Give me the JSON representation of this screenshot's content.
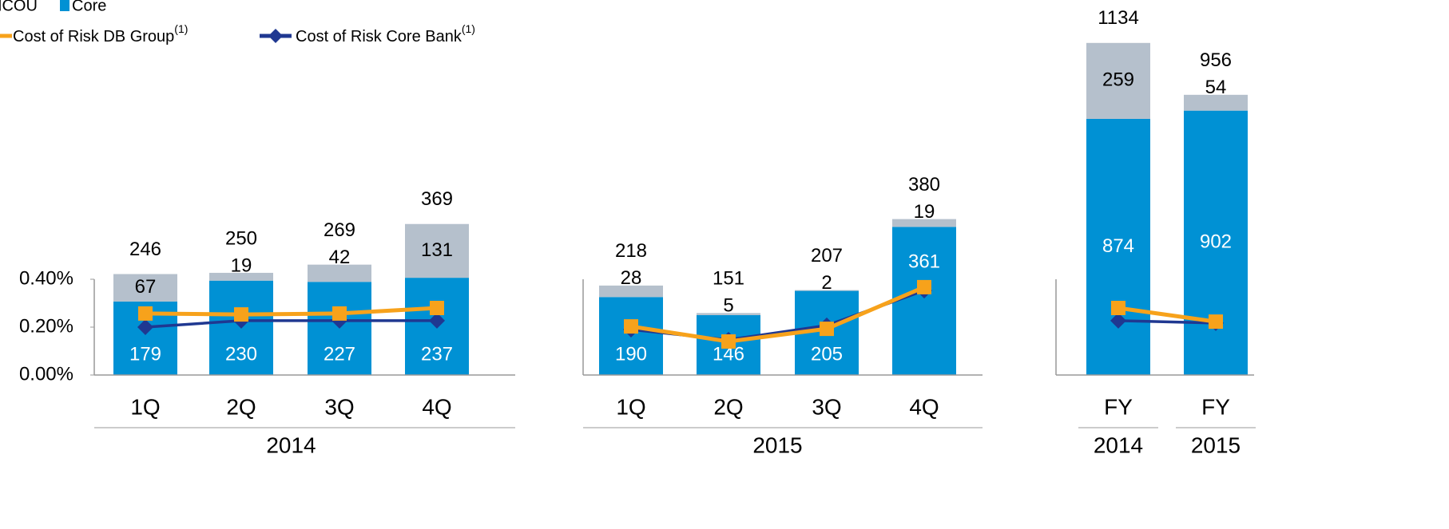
{
  "chart_data": [
    {
      "type": "stacked-bar-line",
      "group": "2014",
      "categories": [
        "1Q",
        "2Q",
        "3Q",
        "4Q"
      ],
      "series": [
        {
          "name": "Core",
          "color": "#0091d4",
          "values": [
            179,
            230,
            227,
            237
          ]
        },
        {
          "name": "NCOU",
          "color": "#b5c0cc",
          "values": [
            67,
            19,
            42,
            131
          ]
        },
        {
          "name": "Cost of Risk Core Bank",
          "note": "(1)",
          "color": "#1f3891",
          "axis": "y2",
          "marker": "diamond",
          "values": [
            0.2,
            0.227,
            0.227,
            0.227
          ]
        },
        {
          "name": "Cost of Risk DB Group",
          "note": "(1)",
          "color": "#f7a21b",
          "axis": "y2",
          "marker": "square",
          "values": [
            0.257,
            0.253,
            0.257,
            0.28
          ]
        }
      ],
      "totals": [
        246,
        250,
        269,
        369
      ],
      "ylim": [
        0,
        875
      ],
      "y2lim": [
        0,
        1.5
      ],
      "y2ticks": [
        {
          "value": 0,
          "label": "0.00%"
        },
        {
          "value": 0.2,
          "label": "0.20%"
        },
        {
          "value": 0.4,
          "label": "0.40%"
        }
      ]
    },
    {
      "type": "stacked-bar-line",
      "group": "2015",
      "categories": [
        "1Q",
        "2Q",
        "3Q",
        "4Q"
      ],
      "series": [
        {
          "color": "#0091d4",
          "values": [
            190,
            146,
            205,
            361
          ]
        },
        {
          "color": "#b5c0cc",
          "values": [
            28,
            5,
            2,
            19
          ]
        },
        {
          "color": "#1f3891",
          "axis": "y2",
          "marker": "diamond",
          "values": [
            0.19,
            0.147,
            0.207,
            0.353
          ]
        },
        {
          "color": "#f7a21b",
          "axis": "y2",
          "marker": "square",
          "values": [
            0.203,
            0.14,
            0.193,
            0.367
          ]
        }
      ],
      "totals": [
        218,
        151,
        207,
        380
      ],
      "ylim": [
        0,
        875
      ],
      "y2lim": [
        0,
        1.5
      ]
    },
    {
      "type": "stacked-bar-line",
      "groups": [
        "2014",
        "2015"
      ],
      "categories": [
        "FY",
        "FY"
      ],
      "series": [
        {
          "color": "#0091d4",
          "values": [
            874,
            902
          ]
        },
        {
          "color": "#b5c0cc",
          "values": [
            259,
            54
          ]
        },
        {
          "color": "#1f3891",
          "axis": "y2",
          "marker": "diamond",
          "values": [
            0.227,
            0.217
          ]
        },
        {
          "color": "#f7a21b",
          "axis": "y2",
          "marker": "square",
          "values": [
            0.28,
            0.223
          ]
        }
      ],
      "totals": [
        1134,
        956
      ],
      "ylim": [
        0,
        1225
      ],
      "y2lim": [
        0,
        1.5
      ]
    }
  ]
}
